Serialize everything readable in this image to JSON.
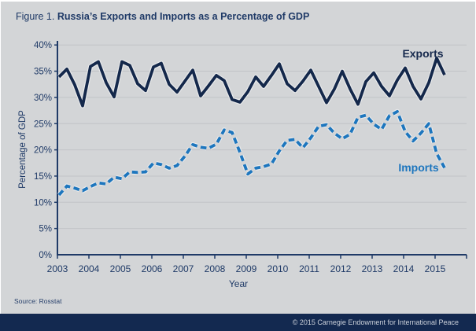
{
  "page": {
    "figure_label": "Figure 1.",
    "title": "Russia’s Exports and Imports as a Percentage of GDP",
    "source": "Source: Rosstat",
    "footer_copyright": "© 2015 Carnegie Endowment for International Peace"
  },
  "colors": {
    "background": "#d3d5d7",
    "gridline": "#c2c4c7",
    "axis": "#1f3a67",
    "exports_line": "#14284b",
    "imports_line": "#1d76be",
    "footer_bg": "#132950",
    "footer_text": "#ccd1da"
  },
  "chart_data": {
    "type": "line",
    "title": "Russia’s Exports and Imports as a Percentage of GDP",
    "xlabel": "Year",
    "ylabel": "Percentage of GDP",
    "frequency": "quarterly",
    "x_range": "2003 Q1 to 2015 Q2",
    "x_tick_labels": [
      "2003",
      "2004",
      "2005",
      "2006",
      "2007",
      "2008",
      "2009",
      "2010",
      "2011",
      "2012",
      "2013",
      "2014",
      "2015"
    ],
    "y_tick_values": [
      0,
      5,
      10,
      15,
      20,
      25,
      30,
      35,
      40
    ],
    "y_tick_suffix": "%",
    "ylim": [
      0,
      40
    ],
    "grid": "horizontal",
    "legend_position": "inline-labels",
    "series": [
      {
        "name": "Exports",
        "style": "solid",
        "color": "#14284b",
        "values": [
          33.9,
          35.4,
          32.4,
          28.4,
          35.9,
          36.8,
          32.8,
          30.1,
          36.8,
          36.1,
          32.6,
          31.3,
          35.8,
          36.5,
          32.5,
          31.0,
          33.1,
          35.2,
          30.3,
          32.2,
          34.2,
          33.2,
          29.6,
          29.1,
          31.1,
          33.9,
          32.1,
          34.2,
          36.4,
          32.6,
          31.3,
          33.1,
          35.2,
          32.1,
          29.0,
          31.6,
          35.0,
          31.6,
          28.7,
          33.0,
          34.7,
          32.1,
          30.3,
          33.3,
          35.6,
          32.1,
          29.7,
          32.8,
          37.5,
          34.3
        ]
      },
      {
        "name": "Imports",
        "style": "dashed",
        "color": "#1d76be",
        "values": [
          11.4,
          13.1,
          12.7,
          12.2,
          13.0,
          13.7,
          13.5,
          14.8,
          14.5,
          15.8,
          15.7,
          15.8,
          17.5,
          17.2,
          16.5,
          17.0,
          18.8,
          21.0,
          20.5,
          20.3,
          21.1,
          23.8,
          23.3,
          19.5,
          15.4,
          16.5,
          16.8,
          17.3,
          19.8,
          21.8,
          22.0,
          20.4,
          22.3,
          24.5,
          24.8,
          23.2,
          22.1,
          23.0,
          26.2,
          26.6,
          24.9,
          23.9,
          26.5,
          27.3,
          23.5,
          21.7,
          23.2,
          25.0,
          19.3,
          16.6
        ]
      }
    ]
  }
}
